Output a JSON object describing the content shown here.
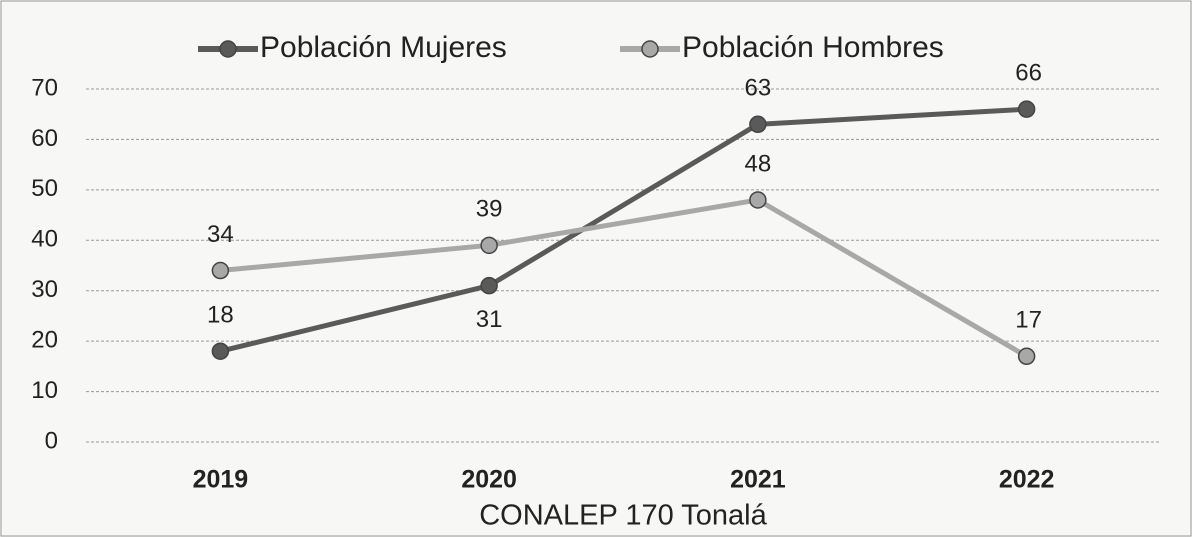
{
  "chart_data": {
    "type": "line",
    "x_label": "CONALEP 170 Tonalá",
    "categories": [
      "2019",
      "2020",
      "2021",
      "2022"
    ],
    "series": [
      {
        "name": "Población Mujeres",
        "color": "#5a5a5a",
        "values": [
          18,
          31,
          63,
          66
        ]
      },
      {
        "name": "Población Hombres",
        "color": "#a8a8a8",
        "values": [
          34,
          39,
          48,
          17
        ]
      }
    ],
    "ylim": [
      0,
      70
    ],
    "yticks": [
      0,
      10,
      20,
      30,
      40,
      50,
      60,
      70
    ],
    "grid": true,
    "legend": "top"
  }
}
